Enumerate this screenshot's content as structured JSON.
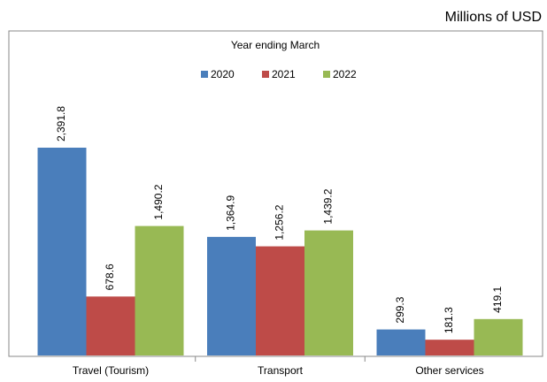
{
  "chart_data": {
    "type": "bar",
    "subtitle": "Millions of USD",
    "legend_title": "Year ending March",
    "categories": [
      "Travel (Tourism)",
      "Transport",
      "Other services"
    ],
    "series": [
      {
        "name": "2020",
        "color": "#4a7ebb",
        "values": [
          2391.8,
          1364.9,
          299.3
        ],
        "value_labels": [
          "2,391.8",
          "1,364.9",
          "299.3"
        ]
      },
      {
        "name": "2021",
        "color": "#be4b48",
        "values": [
          678.6,
          1256.2,
          181.3
        ],
        "value_labels": [
          "678.6",
          "1,256.2",
          "181.3"
        ]
      },
      {
        "name": "2022",
        "color": "#98b954",
        "values": [
          1490.2,
          1439.2,
          419.1
        ],
        "value_labels": [
          "1,490.2",
          "1,439.2",
          "419.1"
        ]
      }
    ],
    "legend_position": "top"
  }
}
